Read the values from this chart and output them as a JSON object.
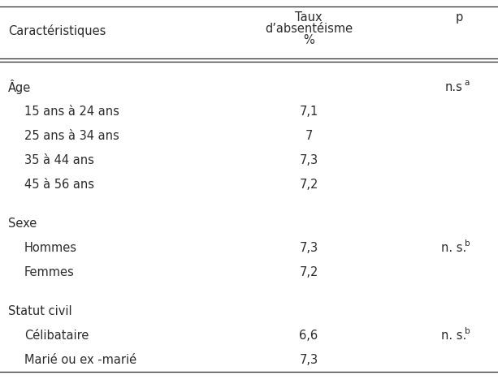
{
  "table_bg": "#ffffff",
  "header": {
    "col1": "Caractéristiques",
    "col2_line1": "Taux",
    "col2_line2": "d’absentéisme",
    "col2_line3": "%",
    "col3": "p"
  },
  "rows": [
    {
      "label": "Âge",
      "indent": false,
      "value": "",
      "p_main": "n.s",
      "p_super": "a",
      "section_break_before": false
    },
    {
      "label": "15 ans à 24 ans",
      "indent": true,
      "value": "7,1",
      "p_main": "",
      "p_super": "",
      "section_break_before": false
    },
    {
      "label": "25 ans à 34 ans",
      "indent": true,
      "value": "7",
      "p_main": "",
      "p_super": "",
      "section_break_before": false
    },
    {
      "label": "35 à 44 ans",
      "indent": true,
      "value": "7,3",
      "p_main": "",
      "p_super": "",
      "section_break_before": false
    },
    {
      "label": "45 à 56 ans",
      "indent": true,
      "value": "7,2",
      "p_main": "",
      "p_super": "",
      "section_break_before": false
    },
    {
      "label": "Sexe",
      "indent": false,
      "value": "",
      "p_main": "",
      "p_super": "",
      "section_break_before": true
    },
    {
      "label": "Hommes",
      "indent": true,
      "value": "7,3",
      "p_main": "n. s.",
      "p_super": "b",
      "section_break_before": false
    },
    {
      "label": "Femmes",
      "indent": true,
      "value": "7,2",
      "p_main": "",
      "p_super": "",
      "section_break_before": false
    },
    {
      "label": "Statut civil",
      "indent": false,
      "value": "",
      "p_main": "",
      "p_super": "",
      "section_break_before": true
    },
    {
      "label": "Célibataire",
      "indent": true,
      "value": "6,6",
      "p_main": "n. s.",
      "p_super": "b",
      "section_break_before": false
    },
    {
      "label": "Marié ou ex -marié",
      "indent": true,
      "value": "7,3",
      "p_main": "",
      "p_super": "",
      "section_break_before": false
    }
  ],
  "font_size": 10.5,
  "text_color": "#2b2b2b",
  "line_color": "#2b2b2b",
  "fig_width": 6.13,
  "fig_height": 4.78,
  "dpi": 100
}
